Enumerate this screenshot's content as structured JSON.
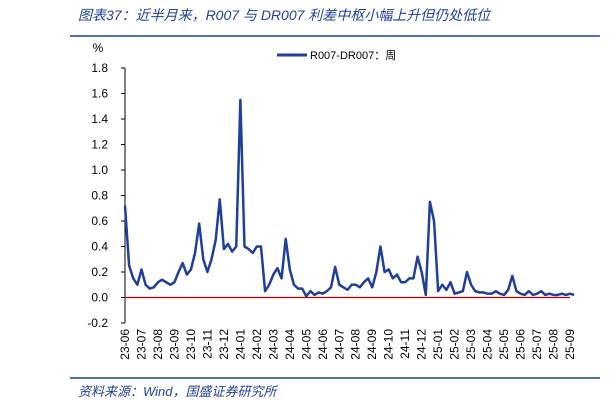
{
  "chart_data": {
    "type": "line",
    "title": "图表37：近半月来，R007 与 DR007 利差中枢小幅上升但仍处低位",
    "source": "资料来源：Wind，国盛证券研究所",
    "y_unit": "%",
    "categories": [
      "23-06",
      null,
      null,
      null,
      "23-07",
      null,
      null,
      null,
      "23-08",
      null,
      null,
      null,
      "23-09",
      null,
      null,
      null,
      "23-10",
      null,
      null,
      null,
      "23-11",
      null,
      null,
      null,
      "23-12",
      null,
      null,
      null,
      "24-01",
      null,
      null,
      null,
      "24-02",
      null,
      null,
      null,
      "24-03",
      null,
      null,
      null,
      "24-04",
      null,
      null,
      null,
      "24-05",
      null,
      null,
      null,
      "24-06",
      null,
      null,
      null,
      "24-07",
      null,
      null,
      null,
      "24-08",
      null,
      null,
      null,
      "24-09",
      null,
      null,
      null,
      "24-10",
      null,
      null,
      null,
      "24-11",
      null,
      null,
      null,
      "24-12",
      null,
      null,
      null,
      "25-01",
      null,
      null,
      null,
      "25-02",
      null,
      null,
      null,
      "25-03",
      null,
      null,
      null,
      "25-04",
      null,
      null,
      null,
      "25-05",
      null,
      null,
      null,
      "25-06",
      null,
      null,
      null,
      "25-07",
      null,
      null,
      null,
      "25-08",
      null,
      null,
      null,
      "25-09",
      null
    ],
    "series": [
      {
        "name": "R007-DR007：周",
        "color": "#1f3f99",
        "values": [
          0.72,
          0.25,
          0.15,
          0.1,
          0.22,
          0.1,
          0.07,
          0.08,
          0.12,
          0.14,
          0.12,
          0.1,
          0.12,
          0.2,
          0.27,
          0.18,
          0.22,
          0.35,
          0.58,
          0.3,
          0.2,
          0.3,
          0.45,
          0.77,
          0.38,
          0.42,
          0.36,
          0.4,
          1.55,
          0.4,
          0.38,
          0.35,
          0.4,
          0.4,
          0.05,
          0.1,
          0.18,
          0.23,
          0.15,
          0.46,
          0.22,
          0.1,
          0.07,
          0.07,
          0.01,
          0.05,
          0.02,
          0.04,
          0.03,
          0.05,
          0.08,
          0.24,
          0.1,
          0.08,
          0.06,
          0.1,
          0.1,
          0.08,
          0.12,
          0.15,
          0.08,
          0.2,
          0.4,
          0.2,
          0.22,
          0.15,
          0.18,
          0.12,
          0.12,
          0.15,
          0.15,
          0.32,
          0.2,
          0.02,
          0.75,
          0.6,
          0.05,
          0.1,
          0.06,
          0.12,
          0.03,
          0.04,
          0.05,
          0.2,
          0.1,
          0.05,
          0.04,
          0.04,
          0.03,
          0.03,
          0.05,
          0.03,
          0.02,
          0.06,
          0.17,
          0.05,
          0.03,
          0.02,
          0.05,
          0.02,
          0.03,
          0.05,
          0.02,
          0.03,
          0.02,
          0.02,
          0.03,
          0.02,
          0.03,
          0.02
        ]
      }
    ],
    "ylim": [
      -0.2,
      1.8
    ],
    "yticks": [
      -0.2,
      {
        "value": 0,
        "label": "0.0"
      },
      0.2,
      0.4,
      0.6,
      0.8,
      {
        "value": 1,
        "label": "1.0"
      },
      1.2,
      1.4,
      1.6,
      1.8
    ],
    "zero_line_color": "#c00000",
    "legend": "top"
  }
}
